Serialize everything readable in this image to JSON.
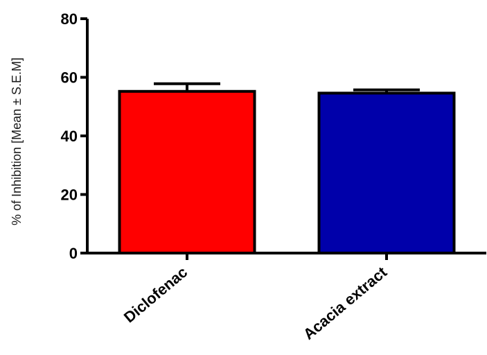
{
  "chart_data": {
    "type": "bar",
    "title": "",
    "xlabel": "",
    "ylabel": "% of Inhibition [Mean ± S.E.M]",
    "categories": [
      "Diclofenac",
      "Acacia extract"
    ],
    "values": [
      55.2,
      54.6
    ],
    "errors": [
      2.6,
      1.1
    ],
    "colors": [
      "#ff0000",
      "#0000aa"
    ],
    "ylim": [
      0,
      80
    ],
    "yticks": [
      0,
      20,
      40,
      60,
      80
    ],
    "grid": false,
    "legend": "none"
  }
}
